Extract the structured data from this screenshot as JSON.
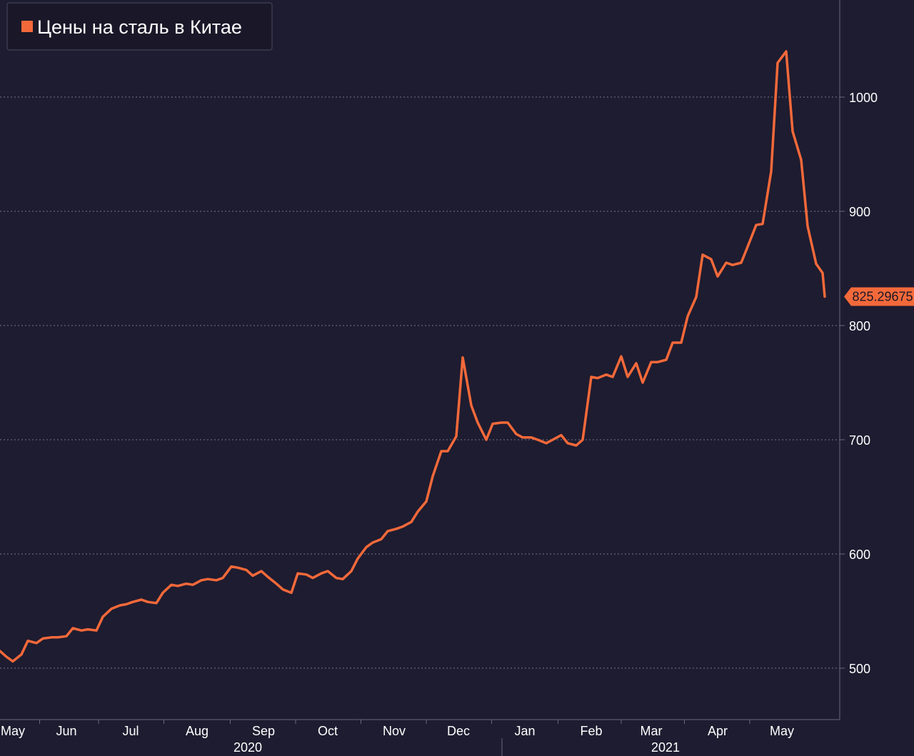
{
  "chart_data": {
    "type": "line",
    "legend": {
      "label": "Цены на сталь в Китае",
      "placement": "top-left"
    },
    "colors": {
      "series": "#f4693a",
      "background": "#1e1c30"
    },
    "y_axis": {
      "side": "right",
      "ticks": [
        500,
        600,
        700,
        800,
        900,
        1000
      ],
      "range": [
        455,
        1085
      ],
      "grid": true
    },
    "x_axis": {
      "range": [
        "2020-05-01",
        "2021-05-28"
      ],
      "ticks": [
        {
          "label": "May",
          "date": "2020-05-07"
        },
        {
          "label": "Jun",
          "date": "2020-06-01"
        },
        {
          "label": "Jul",
          "date": "2020-07-01"
        },
        {
          "label": "Aug",
          "date": "2020-08-01"
        },
        {
          "label": "Sep",
          "date": "2020-09-01"
        },
        {
          "label": "Oct",
          "date": "2020-10-01"
        },
        {
          "label": "Nov",
          "date": "2020-11-01"
        },
        {
          "label": "Dec",
          "date": "2020-12-01"
        },
        {
          "label": "Jan",
          "date": "2021-01-01"
        },
        {
          "label": "Feb",
          "date": "2021-02-01"
        },
        {
          "label": "Mar",
          "date": "2021-03-01"
        },
        {
          "label": "Apr",
          "date": "2021-04-01"
        },
        {
          "label": "May",
          "date": "2021-05-01"
        }
      ],
      "years": [
        {
          "label": "2020",
          "date": "2020-09-01"
        },
        {
          "label": "2021",
          "date": "2021-03-15"
        }
      ],
      "year_divider": "2021-01-01"
    },
    "last_value": {
      "label": "825.29675",
      "value": 825.29675
    },
    "series": [
      {
        "name": "Цены на сталь в Китае",
        "x": [
          "2020-05-01",
          "2020-05-04",
          "2020-05-07",
          "2020-05-11",
          "2020-05-14",
          "2020-05-18",
          "2020-05-21",
          "2020-05-25",
          "2020-05-28",
          "2020-06-01",
          "2020-06-04",
          "2020-06-08",
          "2020-06-11",
          "2020-06-15",
          "2020-06-18",
          "2020-06-22",
          "2020-06-26",
          "2020-06-29",
          "2020-07-02",
          "2020-07-06",
          "2020-07-09",
          "2020-07-13",
          "2020-07-16",
          "2020-07-20",
          "2020-07-23",
          "2020-07-27",
          "2020-07-30",
          "2020-08-03",
          "2020-08-06",
          "2020-08-10",
          "2020-08-13",
          "2020-08-17",
          "2020-08-20",
          "2020-08-24",
          "2020-08-27",
          "2020-08-31",
          "2020-09-03",
          "2020-09-07",
          "2020-09-10",
          "2020-09-14",
          "2020-09-17",
          "2020-09-21",
          "2020-09-24",
          "2020-09-28",
          "2020-10-01",
          "2020-10-05",
          "2020-10-08",
          "2020-10-12",
          "2020-10-15",
          "2020-10-19",
          "2020-10-22",
          "2020-10-26",
          "2020-10-29",
          "2020-11-02",
          "2020-11-05",
          "2020-11-09",
          "2020-11-12",
          "2020-11-16",
          "2020-11-19",
          "2020-11-23",
          "2020-11-26",
          "2020-11-30",
          "2020-12-03",
          "2020-12-07",
          "2020-12-10",
          "2020-12-14",
          "2020-12-17",
          "2020-12-21",
          "2020-12-24",
          "2020-12-28",
          "2020-12-31",
          "2021-01-04",
          "2021-01-07",
          "2021-01-11",
          "2021-01-14",
          "2021-01-18",
          "2021-01-21",
          "2021-01-25",
          "2021-01-28",
          "2021-02-01",
          "2021-02-04",
          "2021-02-08",
          "2021-02-11",
          "2021-02-15",
          "2021-02-18",
          "2021-02-22",
          "2021-02-25",
          "2021-03-01",
          "2021-03-04",
          "2021-03-08",
          "2021-03-11",
          "2021-03-15",
          "2021-03-18",
          "2021-03-22",
          "2021-03-25",
          "2021-03-29",
          "2021-04-01",
          "2021-04-05",
          "2021-04-08",
          "2021-04-12",
          "2021-04-15",
          "2021-04-19",
          "2021-04-22",
          "2021-04-26",
          "2021-04-29",
          "2021-05-03",
          "2021-05-06",
          "2021-05-10",
          "2021-05-13",
          "2021-05-17",
          "2021-05-20",
          "2021-05-21"
        ],
        "y": [
          515,
          510,
          506,
          512,
          524,
          522,
          526,
          527,
          527,
          528,
          535,
          533,
          534,
          533,
          545,
          552,
          555,
          556,
          558,
          560,
          558,
          557,
          566,
          573,
          572,
          574,
          573,
          577,
          578,
          577,
          579,
          589,
          588,
          586,
          581,
          585,
          580,
          574,
          569,
          566,
          583,
          582,
          579,
          583,
          585,
          579,
          578,
          585,
          596,
          606,
          610,
          613,
          620,
          622,
          624,
          628,
          637,
          646,
          668,
          690,
          690,
          703,
          772,
          730,
          715,
          700,
          714,
          715,
          715,
          705,
          702,
          702,
          700,
          697,
          700,
          704,
          697,
          695,
          700,
          755,
          754,
          757,
          755,
          773,
          755,
          767,
          750,
          768,
          768,
          770,
          785,
          785,
          808,
          825,
          862,
          858,
          843,
          855,
          853,
          855,
          869,
          888,
          889,
          935,
          1030,
          1040,
          970,
          945,
          887,
          854,
          846,
          825.3
        ]
      }
    ]
  }
}
